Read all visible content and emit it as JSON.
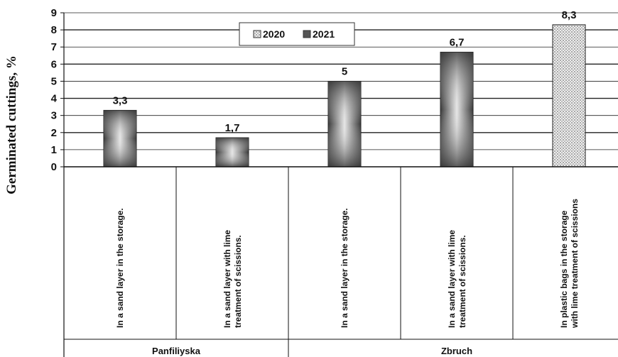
{
  "chart_data": {
    "type": "bar",
    "ylabel": "Germinated cuttings, %",
    "ylim": [
      0,
      9
    ],
    "yticks": [
      "0",
      "1",
      "2",
      "3",
      "4",
      "5",
      "6",
      "7",
      "8",
      "9"
    ],
    "grid": "horizontal",
    "legend": {
      "placement": "top-center",
      "entries": [
        "2020",
        "2021"
      ]
    },
    "categories": [
      [
        "In a sand layer in the storage."
      ],
      [
        "In a sand layer with lime",
        "treatment of scissions."
      ],
      [
        "In a sand layer in the storage."
      ],
      [
        "In a sand layer with lime",
        "treatment of scissions."
      ],
      [
        "In plastic bags in the storage",
        "with lime treatment of scissions"
      ]
    ],
    "groups": [
      {
        "label": "Panfiliyska",
        "categories": [
          0,
          1
        ]
      },
      {
        "label": "Zbruch",
        "categories": [
          2,
          3,
          4
        ]
      }
    ],
    "series": [
      {
        "name": "2020",
        "pattern": "dotted",
        "values": [
          null,
          null,
          null,
          null,
          8.3
        ],
        "labels": [
          "",
          "",
          "",
          "",
          "8,3"
        ]
      },
      {
        "name": "2021",
        "pattern": "gradient",
        "values": [
          3.3,
          1.7,
          5,
          6.7,
          null
        ],
        "labels": [
          "3,3",
          "1,7",
          "5",
          "6,7",
          ""
        ]
      }
    ]
  },
  "colors": {
    "bar_dark": "#4a4a4a",
    "bar_light": "#e6e6e6",
    "grid": "#222222"
  }
}
